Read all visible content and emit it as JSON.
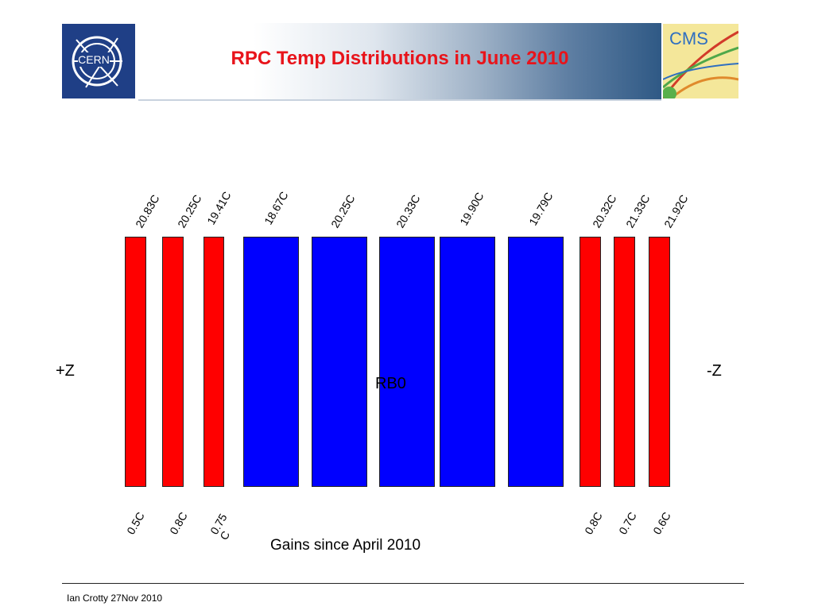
{
  "slide": {
    "title": "RPC Temp Distributions in June 2010",
    "footer": "Ian Crotty  27Nov  2010",
    "left_side": "+Z",
    "right_side": "-Z",
    "center": "RB0",
    "caption": "Gains since April 2010"
  },
  "logos": {
    "cern": "CERN",
    "cms": "CMS"
  },
  "colors": {
    "title": "#e8141b",
    "red_bar": "#ff0000",
    "blue_bar": "#0000ff"
  },
  "temperatures": [
    "20.83C",
    "20.25C",
    "19.41C",
    "18.67C",
    "20.25C",
    "20.33C",
    "19.90C",
    "19.79C",
    "20.32C",
    "21.33C",
    "21.92C"
  ],
  "gains": [
    "0.5C",
    "0.8C",
    "0.75 C",
    "0.8C",
    "0.7C",
    "0.6C"
  ]
}
